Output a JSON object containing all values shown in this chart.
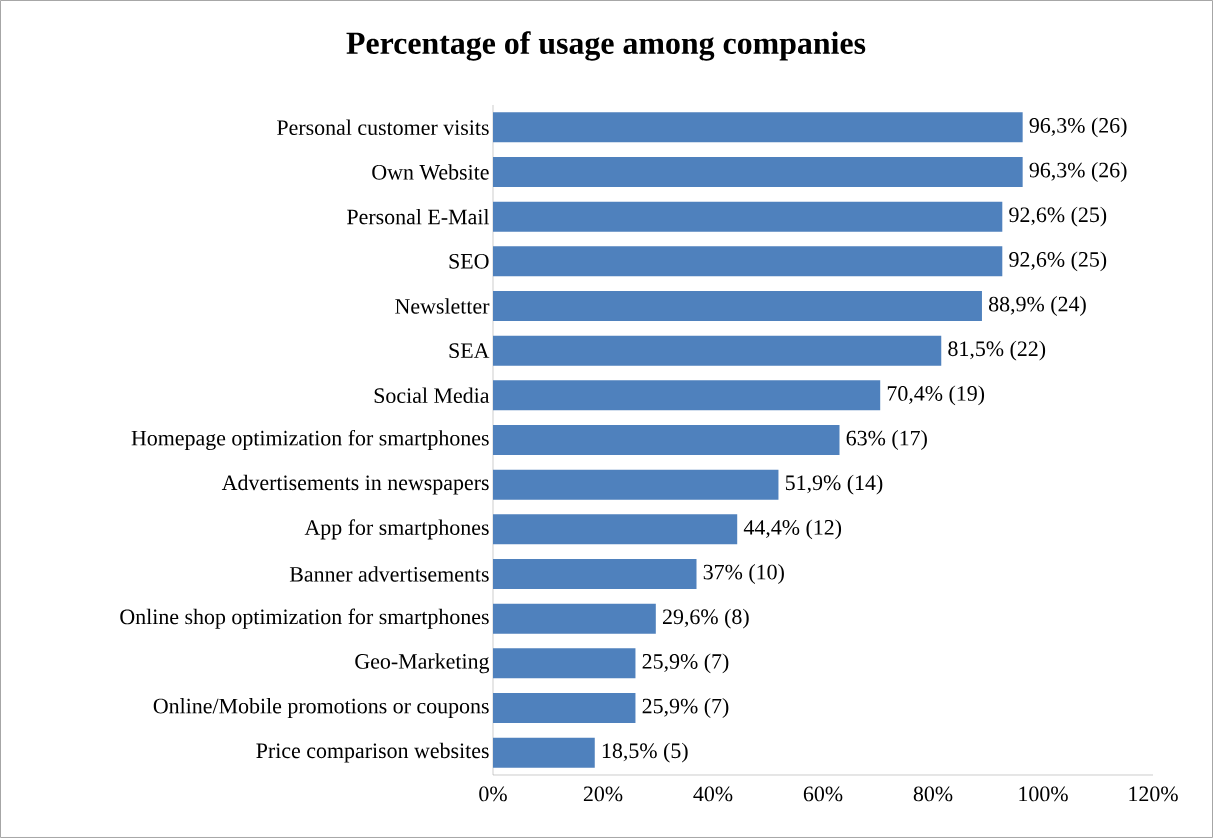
{
  "chart_data": {
    "type": "bar",
    "orientation": "horizontal",
    "title": "Percentage of usage among companies",
    "categories": [
      "Personal customer visits",
      "Own Website",
      "Personal E-Mail",
      "SEO",
      "Newsletter",
      "SEA",
      "Social Media",
      "Homepage optimization for smartphones",
      "Advertisements in newspapers",
      "App for smartphones",
      "Banner advertisements",
      "Online shop optimization for smartphones",
      "Geo-Marketing",
      "Online/Mobile promotions or coupons",
      "Price comparison websites"
    ],
    "values": [
      96.3,
      96.3,
      92.6,
      92.6,
      88.9,
      81.5,
      70.4,
      63,
      51.9,
      44.4,
      37,
      29.6,
      25.9,
      25.9,
      18.5
    ],
    "value_labels": [
      "96,3% (26)",
      "96,3% (26)",
      "92,6% (25)",
      "92,6% (25)",
      "88,9% (24)",
      "81,5% (22)",
      "70,4% (19)",
      "63% (17)",
      "51,9% (14)",
      "44,4% (12)",
      "37% (10)",
      "29,6% (8)",
      "25,9% (7)",
      "25,9% (7)",
      "18,5% (5)"
    ],
    "color": "#4f81bd",
    "xlim": [
      0,
      120
    ],
    "xticks": [
      {
        "value": 0,
        "label": "0%"
      },
      {
        "value": 20,
        "label": "20%"
      },
      {
        "value": 40,
        "label": "40%"
      },
      {
        "value": 60,
        "label": "60%"
      },
      {
        "value": 80,
        "label": "80%"
      },
      {
        "value": 100,
        "label": "100%"
      },
      {
        "value": 120,
        "label": "120%"
      }
    ],
    "grid": false
  }
}
